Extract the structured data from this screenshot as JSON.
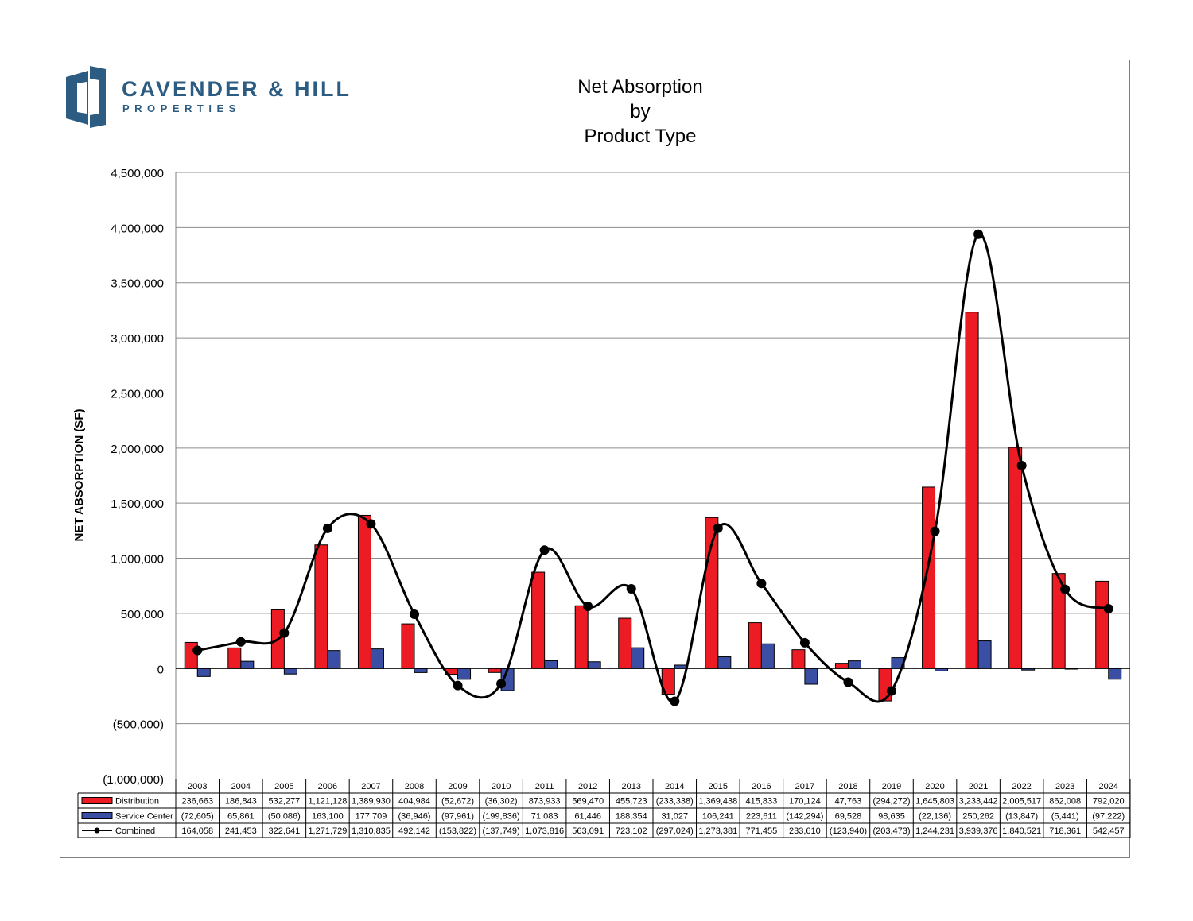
{
  "logo": {
    "name": "CAVENDER & HILL",
    "sub": "PROPERTIES",
    "color": "#2d5c82"
  },
  "title_lines": [
    "Net Absorption",
    "by",
    "Product Type"
  ],
  "chart_data": {
    "type": "bar",
    "title": "Net Absorption by Product Type",
    "ylabel": "NET ABSORPTION (SF)",
    "xlabel": "",
    "ylim": [
      -1000000,
      4500000
    ],
    "ytick_step": 500000,
    "yticks": [
      "(1,000,000)",
      "(500,000)",
      "0",
      "500,000",
      "1,000,000",
      "1,500,000",
      "2,000,000",
      "2,500,000",
      "3,000,000",
      "3,500,000",
      "4,000,000",
      "4,500,000"
    ],
    "grid": true,
    "legend_placement": "data-table-left",
    "categories": [
      "2003",
      "2004",
      "2005",
      "2006",
      "2007",
      "2008",
      "2009",
      "2010",
      "2011",
      "2012",
      "2013",
      "2014",
      "2015",
      "2016",
      "2017",
      "2018",
      "2019",
      "2020",
      "2021",
      "2022",
      "2023",
      "2024"
    ],
    "series": [
      {
        "name": "Distribution",
        "kind": "bar",
        "color": "#ed1c24",
        "values": [
          236663,
          186843,
          532277,
          1121128,
          1389930,
          404984,
          -52672,
          -36302,
          873933,
          569470,
          455723,
          -233338,
          1369438,
          415833,
          170124,
          47763,
          -294272,
          1645803,
          3233442,
          2005517,
          862008,
          792020
        ],
        "labels": [
          "236,663",
          "186,843",
          "532,277",
          "1,121,128",
          "1,389,930",
          "404,984",
          "(52,672)",
          "(36,302)",
          "873,933",
          "569,470",
          "455,723",
          "(233,338)",
          "1,369,438",
          "415,833",
          "170,124",
          "47,763",
          "(294,272)",
          "1,645,803",
          "3,233,442",
          "2,005,517",
          "862,008",
          "792,020"
        ]
      },
      {
        "name": "Service Center",
        "kind": "bar",
        "color": "#3a4fa3",
        "values": [
          -72605,
          65861,
          -50086,
          163100,
          177709,
          -36946,
          -97961,
          -199836,
          71083,
          61446,
          188354,
          31027,
          106241,
          223611,
          -142294,
          69528,
          98635,
          -22136,
          250262,
          -13847,
          -5441,
          -97222
        ],
        "labels": [
          "(72,605)",
          "65,861",
          "(50,086)",
          "163,100",
          "177,709",
          "(36,946)",
          "(97,961)",
          "(199,836)",
          "71,083",
          "61,446",
          "188,354",
          "31,027",
          "106,241",
          "223,611",
          "(142,294)",
          "69,528",
          "98,635",
          "(22,136)",
          "250,262",
          "(13,847)",
          "(5,441)",
          "(97,222)"
        ]
      },
      {
        "name": "Combined",
        "kind": "line",
        "color": "#000000",
        "values": [
          164058,
          241453,
          322641,
          1271729,
          1310835,
          492142,
          -153822,
          -137749,
          1073816,
          563091,
          723102,
          -297024,
          1273381,
          771455,
          233610,
          -123940,
          -203473,
          1244231,
          3939376,
          1840521,
          718361,
          542457
        ],
        "labels": [
          "164,058",
          "241,453",
          "322,641",
          "1,271,729",
          "1,310,835",
          "492,142",
          "(153,822)",
          "(137,749)",
          "1,073,816",
          "563,091",
          "723,102",
          "(297,024)",
          "1,273,381",
          "771,455",
          "233,610",
          "(123,940)",
          "(203,473)",
          "1,244,231",
          "3,939,376",
          "1,840,521",
          "718,361",
          "542,457"
        ]
      }
    ]
  }
}
